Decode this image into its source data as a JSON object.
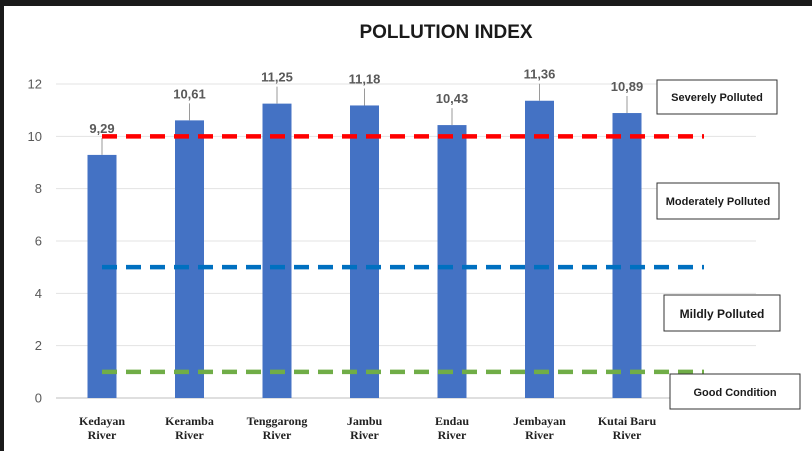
{
  "chart_data": {
    "type": "bar",
    "title": "POLLUTION INDEX",
    "xlabel": "",
    "ylabel": "",
    "categories": [
      [
        "Kedayan",
        "River"
      ],
      [
        "Keramba",
        "River"
      ],
      [
        "Tenggarong",
        "River"
      ],
      [
        "Jambu",
        "River"
      ],
      [
        "Endau",
        "River"
      ],
      [
        "Jembayan",
        "River"
      ],
      [
        "Kutai Baru",
        "River"
      ]
    ],
    "values": [
      9.29,
      10.61,
      11.25,
      11.18,
      10.43,
      11.36,
      10.89
    ],
    "value_labels": [
      "9,29",
      "10,61",
      "11,25",
      "11,18",
      "10,43",
      "11,36",
      "10,89"
    ],
    "ylim": [
      0,
      12
    ],
    "yticks": [
      0,
      2,
      4,
      6,
      8,
      10,
      12
    ],
    "grid": true,
    "bar_color": "#4472c4",
    "thresholds": [
      {
        "value": 10,
        "color": "#ff0000"
      },
      {
        "value": 5,
        "color": "#0070c0"
      },
      {
        "value": 1,
        "color": "#70ad47"
      }
    ],
    "status_labels": [
      "Severely Polluted",
      "Moderately Polluted",
      "Mildly Polluted",
      "Good Condition"
    ]
  }
}
